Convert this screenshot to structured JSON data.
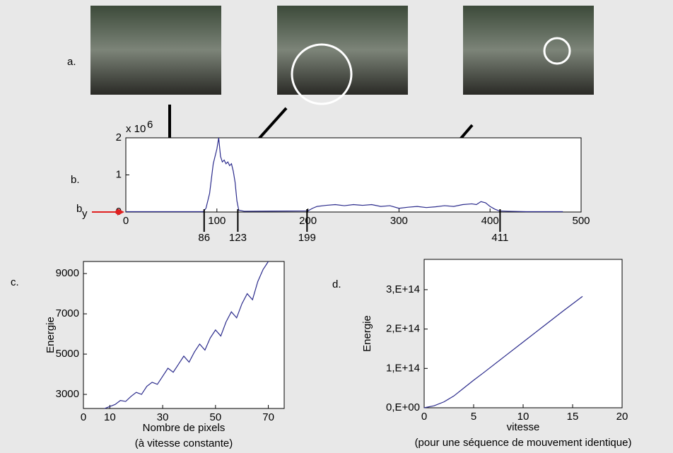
{
  "figure": {
    "panel_a_label": "a."
  },
  "chart_data": [
    {
      "type": "line",
      "panel_label": "b.",
      "y_multiplier": "x 10",
      "y_multiplier_exponent": "6",
      "threshold": 0,
      "threshold_label": "b",
      "threshold_label_sub": "y",
      "x": [
        0,
        85,
        88,
        92,
        96,
        100,
        102,
        104,
        106,
        108,
        110,
        112,
        114,
        116,
        118,
        120,
        122,
        124,
        130,
        200,
        205,
        210,
        220,
        230,
        240,
        250,
        260,
        270,
        280,
        290,
        300,
        310,
        320,
        330,
        340,
        350,
        360,
        370,
        380,
        385,
        390,
        395,
        400,
        405,
        410,
        420,
        440,
        480
      ],
      "series": [
        {
          "name": "b",
          "color": "#2b2b8c",
          "values": [
            0.01,
            0.01,
            0.1,
            0.5,
            1.3,
            1.7,
            2.0,
            1.5,
            1.35,
            1.4,
            1.3,
            1.35,
            1.25,
            1.3,
            1.1,
            0.8,
            0.3,
            0.05,
            0.02,
            0.03,
            0.1,
            0.15,
            0.18,
            0.2,
            0.17,
            0.2,
            0.18,
            0.2,
            0.15,
            0.17,
            0.1,
            0.13,
            0.15,
            0.12,
            0.14,
            0.17,
            0.15,
            0.2,
            0.22,
            0.2,
            0.28,
            0.25,
            0.15,
            0.08,
            0.03,
            0.02,
            0.01,
            0.01
          ]
        }
      ],
      "xlim": [
        0,
        500
      ],
      "xticks": [
        0,
        100,
        200,
        300,
        400,
        500
      ],
      "ylim": [
        0,
        2
      ],
      "yticks": [
        0,
        1,
        2
      ],
      "markers": [
        86,
        123,
        199,
        411
      ]
    },
    {
      "type": "line",
      "panel_label": "c.",
      "y_label": "Energie",
      "x_label": "Nombre de pixels",
      "x_sublabel": "(à vitesse constante)",
      "x": [
        8,
        10,
        12,
        14,
        16,
        18,
        20,
        22,
        24,
        26,
        28,
        30,
        32,
        34,
        36,
        38,
        40,
        42,
        44,
        46,
        48,
        50,
        52,
        54,
        56,
        58,
        60,
        62,
        64,
        66,
        68,
        70
      ],
      "series": [
        {
          "name": "c",
          "color": "#2b2b8c",
          "values": [
            2300,
            2400,
            2500,
            2700,
            2650,
            2900,
            3100,
            3000,
            3400,
            3600,
            3500,
            3900,
            4300,
            4100,
            4500,
            4900,
            4600,
            5100,
            5500,
            5200,
            5800,
            6200,
            5900,
            6600,
            7100,
            6800,
            7500,
            8000,
            7700,
            8600,
            9200,
            9600
          ]
        }
      ],
      "xlim": [
        0,
        76
      ],
      "xticks": [
        0,
        10,
        30,
        50,
        70
      ],
      "ylim": [
        2300,
        9600
      ],
      "yticks": [
        3000,
        5000,
        7000,
        9000
      ]
    },
    {
      "type": "line",
      "panel_label": "d.",
      "y_label": "Energie",
      "x_label": "vitesse",
      "x_sublabel": "(pour une séquence de mouvement identique)",
      "x": [
        0,
        1,
        2,
        3,
        4,
        5,
        6,
        8,
        10,
        12,
        14,
        16
      ],
      "series": [
        {
          "name": "d",
          "color": "#2b2b8c",
          "values": [
            0,
            5000000000000.0,
            15000000000000.0,
            30000000000000.0,
            50000000000000.0,
            70000000000000.0,
            89000000000000.0,
            128000000000000.0,
            167000000000000.0,
            206000000000000.0,
            245000000000000.0,
            283000000000000.0
          ]
        }
      ],
      "xlim": [
        0,
        20
      ],
      "xticks": [
        0,
        5,
        10,
        15,
        20
      ],
      "ylim": [
        0,
        377000000000000.0
      ],
      "yticks": [
        {
          "value": 0,
          "label": "0,E+00"
        },
        {
          "value": 100000000000000.0,
          "label": "1,E+14"
        },
        {
          "value": 200000000000000.0,
          "label": "2,E+14"
        },
        {
          "value": 300000000000000.0,
          "label": "3,E+14"
        }
      ]
    }
  ]
}
